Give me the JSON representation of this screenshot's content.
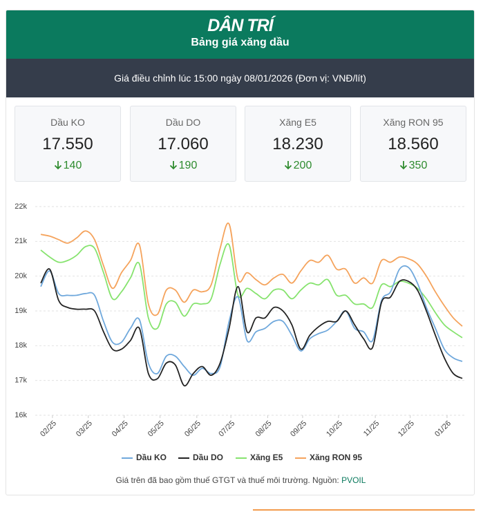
{
  "header": {
    "logo": "DÂN TRÍ",
    "title": "Bảng giá xăng dầu",
    "subtitle": "Giá điều chỉnh lúc 15:00 ngày 08/01/2026 (Đơn vị: VNĐ/lít)"
  },
  "cards": [
    {
      "name": "Dầu KO",
      "price": "17.550",
      "change": "140"
    },
    {
      "name": "Dầu DO",
      "price": "17.060",
      "change": "190"
    },
    {
      "name": "Xăng E5",
      "price": "18.230",
      "change": "200"
    },
    {
      "name": "Xăng RON 95",
      "price": "18.560",
      "change": "350"
    }
  ],
  "chart_data": {
    "type": "line",
    "x": [
      0,
      1,
      2,
      3,
      4,
      5,
      6,
      7,
      8,
      9,
      10,
      11,
      12,
      13,
      14,
      15,
      16,
      17,
      18,
      19,
      20,
      21,
      22,
      23,
      24,
      25,
      26,
      27,
      28,
      29,
      30,
      31,
      32,
      33,
      34,
      35,
      36,
      37,
      38,
      39,
      40,
      41,
      42,
      43,
      44,
      45,
      46,
      47
    ],
    "xlim": [
      0,
      47
    ],
    "xticks": [
      {
        "value": 1.3,
        "label": "02/25"
      },
      {
        "value": 5.3,
        "label": "03/25"
      },
      {
        "value": 9.3,
        "label": "04/25"
      },
      {
        "value": 13.3,
        "label": "05/25"
      },
      {
        "value": 17.4,
        "label": "06/25"
      },
      {
        "value": 21.2,
        "label": "07/25"
      },
      {
        "value": 25.3,
        "label": "08/25"
      },
      {
        "value": 29.2,
        "label": "09/25"
      },
      {
        "value": 33.2,
        "label": "10/25"
      },
      {
        "value": 37.3,
        "label": "11/25"
      },
      {
        "value": 41.2,
        "label": "12/25"
      },
      {
        "value": 45.3,
        "label": "01/26"
      }
    ],
    "ylim": [
      16000,
      22000
    ],
    "yticks": [
      {
        "value": 16000,
        "label": "16k"
      },
      {
        "value": 17000,
        "label": "17k"
      },
      {
        "value": 18000,
        "label": "18k"
      },
      {
        "value": 19000,
        "label": "19k"
      },
      {
        "value": 20000,
        "label": "20k"
      },
      {
        "value": 21000,
        "label": "21k"
      },
      {
        "value": 22000,
        "label": "22k"
      }
    ],
    "grid": true,
    "series": [
      {
        "name": "Dầu KO",
        "color": "#6fa8dc",
        "values": [
          19700,
          20150,
          19500,
          19450,
          19450,
          19500,
          19450,
          18700,
          18100,
          18100,
          18500,
          18750,
          17500,
          17200,
          17700,
          17700,
          17400,
          17150,
          17350,
          17200,
          17400,
          18700,
          19400,
          18150,
          18400,
          18500,
          18700,
          18700,
          18300,
          17850,
          18200,
          18350,
          18450,
          18700,
          19000,
          18500,
          18400,
          18150,
          19300,
          19550,
          20200,
          20250,
          19800,
          19100,
          18500,
          17900,
          17650,
          17550
        ]
      },
      {
        "name": "Dầu DO",
        "color": "#222222",
        "values": [
          19800,
          20200,
          19300,
          19100,
          19050,
          19050,
          19000,
          18400,
          17900,
          17900,
          18150,
          18500,
          17200,
          17050,
          17500,
          17450,
          16850,
          17200,
          17400,
          17150,
          17500,
          18500,
          19700,
          18400,
          18800,
          18800,
          19100,
          19000,
          18600,
          17900,
          18300,
          18550,
          18700,
          18700,
          19000,
          18600,
          18200,
          17950,
          19250,
          19400,
          19850,
          19850,
          19600,
          19000,
          18300,
          17650,
          17200,
          17060
        ]
      },
      {
        "name": "Xăng E5",
        "color": "#86e36e",
        "values": [
          20750,
          20550,
          20400,
          20450,
          20600,
          20850,
          20800,
          20100,
          19350,
          19550,
          19950,
          20350,
          18800,
          18500,
          19200,
          19250,
          18850,
          19200,
          19200,
          19350,
          20350,
          20900,
          19450,
          19650,
          19500,
          19350,
          19600,
          19600,
          19350,
          19600,
          19800,
          19750,
          19900,
          19450,
          19450,
          19200,
          19200,
          19100,
          19750,
          19700,
          19850,
          19800,
          19650,
          19350,
          18950,
          18600,
          18400,
          18230
        ]
      },
      {
        "name": "Xăng RON 95",
        "color": "#f5a35c",
        "values": [
          21200,
          21150,
          21050,
          20950,
          21100,
          21300,
          21050,
          20300,
          19650,
          20100,
          20450,
          20900,
          19200,
          18900,
          19600,
          19600,
          19250,
          19600,
          19550,
          19750,
          20800,
          21500,
          19900,
          20100,
          19900,
          19750,
          19950,
          20050,
          19800,
          20150,
          20450,
          20400,
          20600,
          20200,
          20200,
          19800,
          19950,
          19800,
          20450,
          20400,
          20550,
          20500,
          20350,
          20000,
          19550,
          19150,
          18800,
          18560
        ]
      }
    ]
  },
  "footer": {
    "note": "Giá trên đã bao gồm thuế GTGT và thuế môi trường. Nguồn:",
    "source": "PVOIL"
  }
}
